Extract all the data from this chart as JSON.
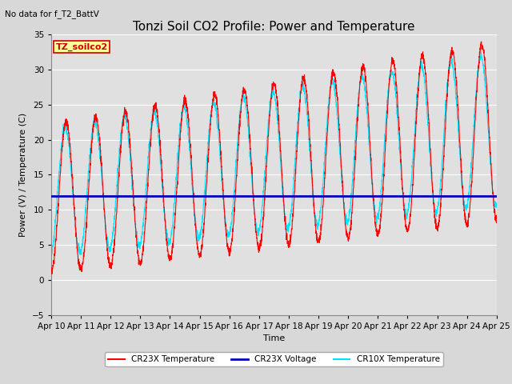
{
  "title": "Tonzi Soil CO2 Profile: Power and Temperature",
  "subtitle": "No data for f_T2_BattV",
  "ylabel": "Power (V) / Temperature (C)",
  "xlabel": "Time",
  "ylim": [
    -5,
    35
  ],
  "yticks": [
    -5,
    0,
    5,
    10,
    15,
    20,
    25,
    30,
    35
  ],
  "x_labels": [
    "Apr 10",
    "Apr 11",
    "Apr 12",
    "Apr 13",
    "Apr 14",
    "Apr 15",
    "Apr 16",
    "Apr 17",
    "Apr 18",
    "Apr 19",
    "Apr 20",
    "Apr 21",
    "Apr 22",
    "Apr 23",
    "Apr 24",
    "Apr 25"
  ],
  "cr23x_color": "#ff0000",
  "cr10x_color": "#00e5ff",
  "voltage_color": "#0000bb",
  "voltage_value": 12.0,
  "background_color": "#e0e0e0",
  "legend_box_color": "#ffff99",
  "legend_box_edge": "#cc0000",
  "annotation_text": "TZ_soilco2",
  "grid_color": "#ffffff",
  "title_fontsize": 11,
  "label_fontsize": 8,
  "tick_fontsize": 7.5
}
